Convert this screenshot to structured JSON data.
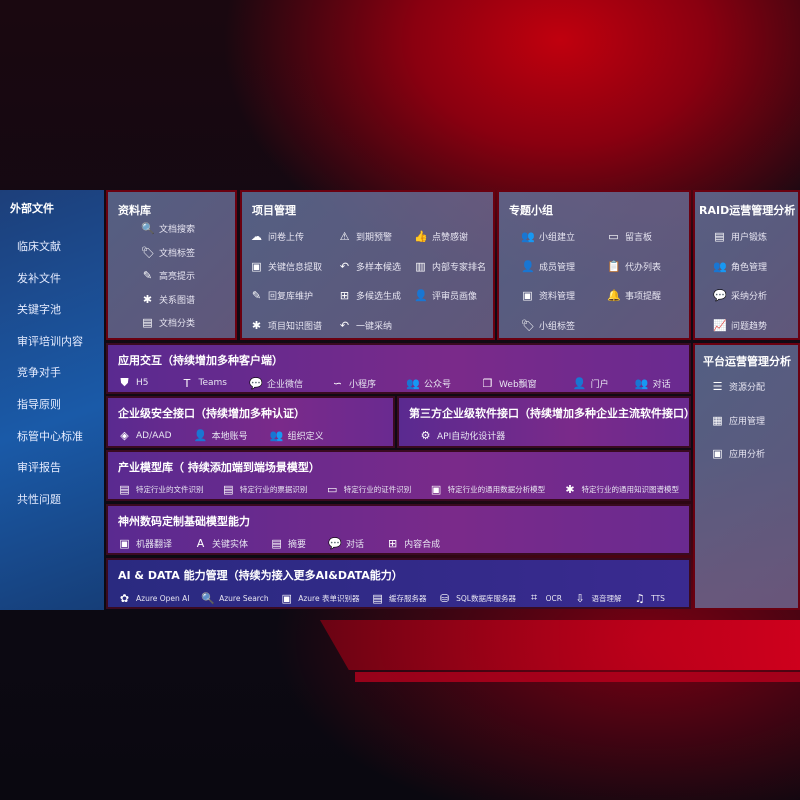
{
  "sidebar": {
    "title": "外部文件",
    "items": [
      "临床文献",
      "发补文件",
      "关键字池",
      "审评培训内容",
      "竞争对手",
      "指导原则",
      "标管中心标准",
      "审评报告",
      "共性问题"
    ]
  },
  "library": {
    "title": "资料库",
    "items": [
      {
        "icon": "doc-search",
        "glyph": "🔍",
        "label": "文档搜索"
      },
      {
        "icon": "tag",
        "glyph": "🏷",
        "label": "文档标签"
      },
      {
        "icon": "highlight",
        "glyph": "✎",
        "label": "高亮提示"
      },
      {
        "icon": "graph",
        "glyph": "✱",
        "label": "关系图谱"
      },
      {
        "icon": "doc-category",
        "glyph": "▤",
        "label": "文档分类"
      }
    ]
  },
  "project": {
    "title": "项目管理",
    "items": [
      {
        "icon": "cloud-upload",
        "glyph": "☁",
        "label": "问卷上传"
      },
      {
        "icon": "alarm",
        "glyph": "⚠",
        "label": "到期预警"
      },
      {
        "icon": "thumbs-up",
        "glyph": "👍",
        "label": "点赞感谢"
      },
      {
        "icon": "extract",
        "glyph": "▣",
        "label": "关键信息提取"
      },
      {
        "icon": "reply-all",
        "glyph": "↶",
        "label": "多样本候选"
      },
      {
        "icon": "ranking",
        "glyph": "▥",
        "label": "内部专家排名"
      },
      {
        "icon": "edit",
        "glyph": "✎",
        "label": "回复库维护"
      },
      {
        "icon": "puzzle",
        "glyph": "⊞",
        "label": "多候选生成"
      },
      {
        "icon": "user",
        "glyph": "👤",
        "label": "评审员画像"
      },
      {
        "icon": "graph",
        "glyph": "✱",
        "label": "项目知识图谱"
      },
      {
        "icon": "reply",
        "glyph": "↶",
        "label": "一键采纳"
      }
    ]
  },
  "group": {
    "title": "专题小组",
    "items": [
      {
        "icon": "group",
        "glyph": "👥",
        "label": "小组建立"
      },
      {
        "icon": "bbs",
        "glyph": "▭",
        "label": "留言板"
      },
      {
        "icon": "user-add",
        "glyph": "👤",
        "label": "成员管理"
      },
      {
        "icon": "clipboard",
        "glyph": "📋",
        "label": "代办列表"
      },
      {
        "icon": "folder",
        "glyph": "▣",
        "label": "资料管理"
      },
      {
        "icon": "bell",
        "glyph": "🔔",
        "label": "事项提醒"
      },
      {
        "icon": "tag",
        "glyph": "🏷",
        "label": "小组标签"
      }
    ]
  },
  "raid": {
    "title": "RAID运营管理分析",
    "items": [
      {
        "icon": "id-card",
        "glyph": "▤",
        "label": "用户锻炼"
      },
      {
        "icon": "users",
        "glyph": "👥",
        "label": "角色管理"
      },
      {
        "icon": "qa",
        "glyph": "💬",
        "label": "采纳分析"
      },
      {
        "icon": "trend",
        "glyph": "📈",
        "label": "问题趋势"
      }
    ]
  },
  "platform": {
    "title": "平台运营管理分析",
    "items": [
      {
        "icon": "checklist",
        "glyph": "☰",
        "label": "资源分配"
      },
      {
        "icon": "apps",
        "glyph": "▦",
        "label": "应用管理"
      },
      {
        "icon": "analysis",
        "glyph": "▣",
        "label": "应用分析"
      }
    ]
  },
  "interaction": {
    "title": "应用交互（持续增加多种客户端）",
    "items": [
      {
        "icon": "html5",
        "glyph": "⛊",
        "label": "H5"
      },
      {
        "icon": "teams",
        "glyph": "T",
        "label": "Teams"
      },
      {
        "icon": "wechat",
        "glyph": "💬",
        "label": "企业微信"
      },
      {
        "icon": "miniprogram",
        "glyph": "∽",
        "label": "小程序"
      },
      {
        "icon": "official-account",
        "glyph": "👥",
        "label": "公众号"
      },
      {
        "icon": "web-window",
        "glyph": "❐",
        "label": "Web飘窗"
      },
      {
        "icon": "portal",
        "glyph": "👤",
        "label": "门户"
      },
      {
        "icon": "chat",
        "glyph": "👥",
        "label": "对话"
      }
    ]
  },
  "security": {
    "title": "企业级安全接口（持续增加多种认证）",
    "items": [
      {
        "icon": "ad",
        "glyph": "◈",
        "label": "AD/AAD"
      },
      {
        "icon": "local-account",
        "glyph": "👤",
        "label": "本地账号"
      },
      {
        "icon": "org",
        "glyph": "👥",
        "label": "组织定义"
      }
    ]
  },
  "third_party": {
    "title": "第三方企业级软件接口（持续增加多种企业主流软件接口）",
    "items": [
      {
        "icon": "api-gear",
        "glyph": "⚙",
        "label": "API自动化设计器"
      }
    ]
  },
  "industry": {
    "title": "产业模型库（ 持续添加端到端场景模型）",
    "items": [
      {
        "icon": "file",
        "glyph": "▤",
        "label": "特定行业的文件识别"
      },
      {
        "icon": "receipt",
        "glyph": "▤",
        "label": "特定行业的票据识别"
      },
      {
        "icon": "id-card",
        "glyph": "▭",
        "label": "特定行业的证件识别"
      },
      {
        "icon": "chart",
        "glyph": "▣",
        "label": "特定行业的通用数据分析模型"
      },
      {
        "icon": "graph",
        "glyph": "✱",
        "label": "特定行业的通用知识图谱模型"
      }
    ]
  },
  "foundation": {
    "title": "神州数码定制基础模型能力",
    "items": [
      {
        "icon": "translate",
        "glyph": "▣",
        "label": "机器翻译"
      },
      {
        "icon": "entity",
        "glyph": "A",
        "label": "关键实体"
      },
      {
        "icon": "summary",
        "glyph": "▤",
        "label": "摘要"
      },
      {
        "icon": "chat",
        "glyph": "💬",
        "label": "对话"
      },
      {
        "icon": "compose",
        "glyph": "⊞",
        "label": "内容合成"
      }
    ]
  },
  "ai_data": {
    "title": "AI & DATA 能力管理（持续为接入更多AI&DATA能力）",
    "items": [
      {
        "icon": "openai",
        "glyph": "✿",
        "label": "Azure Open AI"
      },
      {
        "icon": "search",
        "glyph": "🔍",
        "label": "Azure Search"
      },
      {
        "icon": "form",
        "glyph": "▣",
        "label": "Azure 表单识别器"
      },
      {
        "icon": "cache",
        "glyph": "▤",
        "label": "缓存服务器"
      },
      {
        "icon": "sql",
        "glyph": "⛁",
        "label": "SQL数据库服务器"
      },
      {
        "icon": "ocr",
        "glyph": "⌗",
        "label": "OCR"
      },
      {
        "icon": "speech",
        "glyph": "⇩",
        "label": "语音理解"
      },
      {
        "icon": "tts",
        "glyph": "♫",
        "label": "TTS"
      }
    ]
  }
}
